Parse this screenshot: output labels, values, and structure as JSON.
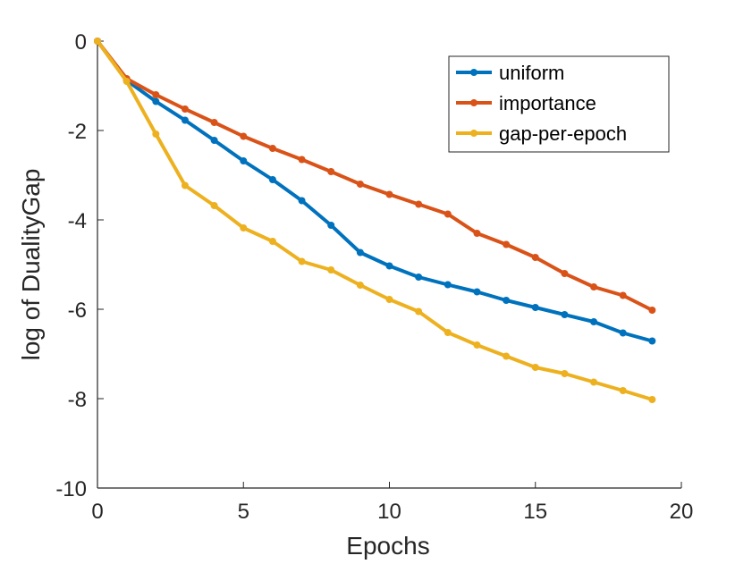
{
  "chart_data": {
    "type": "line",
    "xlabel": "Epochs",
    "ylabel": "log of DualityGap",
    "xlim": [
      0,
      20
    ],
    "ylim": [
      -10,
      0
    ],
    "xticks": [
      0,
      5,
      10,
      15,
      20
    ],
    "yticks": [
      -10,
      -8,
      -6,
      -4,
      -2,
      0
    ],
    "grid": false,
    "legend_position": "top-right",
    "x": [
      0,
      1,
      2,
      3,
      4,
      5,
      6,
      7,
      8,
      9,
      10,
      11,
      12,
      13,
      14,
      15,
      16,
      17,
      18,
      19
    ],
    "series": [
      {
        "name": "uniform",
        "color": "#0072BD",
        "values": [
          0,
          -0.88,
          -1.35,
          -1.77,
          -2.22,
          -2.68,
          -3.1,
          -3.57,
          -4.12,
          -4.73,
          -5.03,
          -5.28,
          -5.45,
          -5.61,
          -5.8,
          -5.96,
          -6.12,
          -6.28,
          -6.53,
          -6.71
        ]
      },
      {
        "name": "importance",
        "color": "#D95319",
        "values": [
          0,
          -0.84,
          -1.2,
          -1.52,
          -1.82,
          -2.13,
          -2.4,
          -2.65,
          -2.92,
          -3.2,
          -3.43,
          -3.65,
          -3.87,
          -4.3,
          -4.55,
          -4.84,
          -5.2,
          -5.5,
          -5.69,
          -6.02
        ]
      },
      {
        "name": "gap-per-epoch",
        "color": "#EDB120",
        "values": [
          0,
          -0.9,
          -2.08,
          -3.23,
          -3.68,
          -4.18,
          -4.48,
          -4.93,
          -5.12,
          -5.46,
          -5.78,
          -6.05,
          -6.52,
          -6.8,
          -7.05,
          -7.3,
          -7.44,
          -7.63,
          -7.82,
          -8.02
        ]
      }
    ]
  }
}
